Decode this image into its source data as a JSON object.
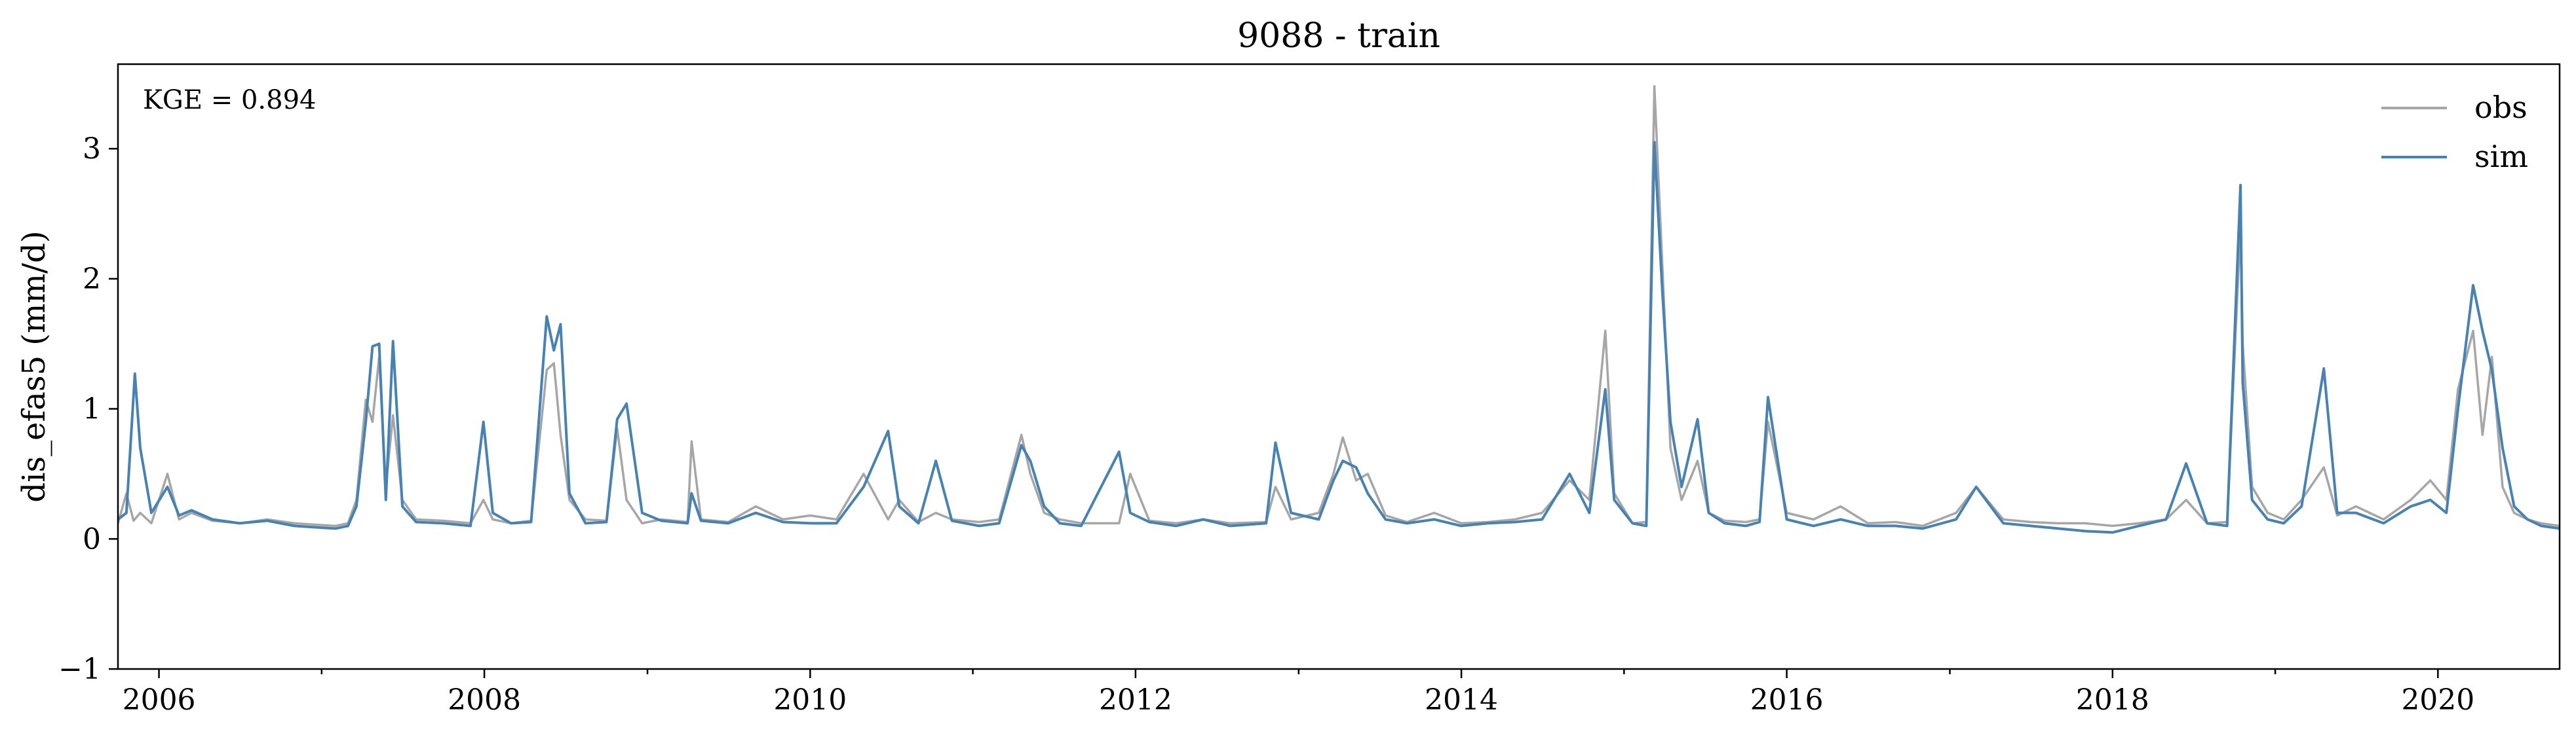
{
  "chart_data": {
    "type": "line",
    "title": "9088 - train",
    "xlabel": "",
    "ylabel": "dis_efas5 (mm/d)",
    "annotation": "KGE = 0.894",
    "xlim": [
      "2005-10-01",
      "2020-09-30"
    ],
    "ylim": [
      -1,
      3.65
    ],
    "x_ticks": [
      "2006",
      "2008",
      "2010",
      "2012",
      "2014",
      "2016",
      "2018",
      "2020"
    ],
    "y_ticks": [
      "−1",
      "0",
      "1",
      "2",
      "3"
    ],
    "grid": false,
    "legend_position": "top-right",
    "series": [
      {
        "name": "obs",
        "color": "#a6a6a6",
        "x": [
          "2005-10-01",
          "2005-10-20",
          "2005-11-05",
          "2005-11-20",
          "2005-12-15",
          "2006-01-20",
          "2006-02-15",
          "2006-03-15",
          "2006-05-01",
          "2006-07-01",
          "2006-09-01",
          "2006-11-01",
          "2006-12-15",
          "2007-02-01",
          "2007-03-01",
          "2007-03-20",
          "2007-04-10",
          "2007-04-25",
          "2007-05-10",
          "2007-05-25",
          "2007-06-10",
          "2007-07-01",
          "2007-08-01",
          "2007-10-01",
          "2007-12-01",
          "2007-12-30",
          "2008-01-20",
          "2008-03-01",
          "2008-04-15",
          "2008-05-20",
          "2008-06-05",
          "2008-06-20",
          "2008-07-10",
          "2008-08-15",
          "2008-10-01",
          "2008-10-25",
          "2008-11-15",
          "2008-12-20",
          "2009-02-01",
          "2009-04-01",
          "2009-04-10",
          "2009-05-01",
          "2009-07-01",
          "2009-09-01",
          "2009-11-01",
          "2010-01-01",
          "2010-03-01",
          "2010-05-01",
          "2010-06-25",
          "2010-07-20",
          "2010-09-01",
          "2010-10-10",
          "2010-11-15",
          "2011-01-15",
          "2011-03-01",
          "2011-04-20",
          "2011-05-10",
          "2011-06-10",
          "2011-07-15",
          "2011-09-01",
          "2011-11-25",
          "2011-12-20",
          "2012-02-01",
          "2012-04-01",
          "2012-06-01",
          "2012-08-01",
          "2012-10-20",
          "2012-11-10",
          "2012-12-15",
          "2013-02-15",
          "2013-03-20",
          "2013-04-10",
          "2013-05-10",
          "2013-06-05",
          "2013-07-15",
          "2013-09-01",
          "2013-11-01",
          "2014-01-01",
          "2014-03-01",
          "2014-05-01",
          "2014-07-01",
          "2014-09-01",
          "2014-10-15",
          "2014-11-20",
          "2014-12-10",
          "2015-01-20",
          "2015-02-20",
          "2015-03-10",
          "2015-03-28",
          "2015-04-15",
          "2015-05-10",
          "2015-06-15",
          "2015-07-10",
          "2015-08-15",
          "2015-10-01",
          "2015-11-01",
          "2015-11-20",
          "2016-01-01",
          "2016-03-01",
          "2016-05-01",
          "2016-07-01",
          "2016-09-01",
          "2016-11-01",
          "2017-01-15",
          "2017-03-01",
          "2017-05-01",
          "2017-07-01",
          "2017-09-01",
          "2017-11-01",
          "2018-01-01",
          "2018-03-01",
          "2018-05-01",
          "2018-06-15",
          "2018-08-01",
          "2018-09-15",
          "2018-10-15",
          "2018-10-20",
          "2018-11-10",
          "2018-12-15",
          "2019-01-20",
          "2019-03-01",
          "2019-04-20",
          "2019-05-20",
          "2019-07-01",
          "2019-09-01",
          "2019-11-01",
          "2019-12-15",
          "2020-01-20",
          "2020-02-15",
          "2020-03-20",
          "2020-04-10",
          "2020-05-01",
          "2020-05-25",
          "2020-06-20",
          "2020-07-20",
          "2020-08-20",
          "2020-09-30"
        ],
        "y": [
          0.12,
          0.35,
          0.14,
          0.2,
          0.12,
          0.5,
          0.15,
          0.2,
          0.14,
          0.12,
          0.15,
          0.12,
          0.11,
          0.1,
          0.12,
          0.3,
          1.07,
          0.9,
          1.4,
          0.4,
          0.95,
          0.3,
          0.15,
          0.14,
          0.12,
          0.3,
          0.15,
          0.12,
          0.14,
          1.3,
          1.35,
          0.8,
          0.3,
          0.15,
          0.14,
          0.85,
          0.3,
          0.12,
          0.15,
          0.13,
          0.75,
          0.15,
          0.13,
          0.25,
          0.15,
          0.18,
          0.15,
          0.5,
          0.15,
          0.3,
          0.13,
          0.2,
          0.15,
          0.13,
          0.15,
          0.8,
          0.5,
          0.2,
          0.15,
          0.12,
          0.12,
          0.5,
          0.14,
          0.12,
          0.15,
          0.12,
          0.13,
          0.4,
          0.15,
          0.2,
          0.5,
          0.78,
          0.45,
          0.5,
          0.18,
          0.13,
          0.2,
          0.12,
          0.13,
          0.15,
          0.2,
          0.45,
          0.3,
          1.6,
          0.35,
          0.12,
          0.13,
          3.48,
          2.1,
          0.7,
          0.3,
          0.6,
          0.2,
          0.14,
          0.13,
          0.15,
          0.9,
          0.2,
          0.15,
          0.25,
          0.12,
          0.13,
          0.1,
          0.2,
          0.4,
          0.15,
          0.13,
          0.12,
          0.12,
          0.1,
          0.12,
          0.15,
          0.3,
          0.12,
          0.13,
          2.4,
          1.5,
          0.4,
          0.2,
          0.15,
          0.3,
          0.55,
          0.18,
          0.25,
          0.15,
          0.3,
          0.45,
          0.3,
          1.15,
          1.6,
          0.8,
          1.4,
          0.4,
          0.2,
          0.15,
          0.12,
          0.1
        ]
      },
      {
        "name": "sim",
        "color": "#4682b4",
        "x": [
          "2005-10-01",
          "2005-10-20",
          "2005-11-08",
          "2005-11-20",
          "2005-12-15",
          "2006-01-20",
          "2006-02-15",
          "2006-03-15",
          "2006-05-01",
          "2006-07-01",
          "2006-09-01",
          "2006-11-01",
          "2006-12-15",
          "2007-02-01",
          "2007-03-01",
          "2007-03-20",
          "2007-04-10",
          "2007-04-25",
          "2007-05-10",
          "2007-05-25",
          "2007-06-10",
          "2007-07-01",
          "2007-08-01",
          "2007-10-01",
          "2007-12-01",
          "2007-12-30",
          "2008-01-20",
          "2008-03-01",
          "2008-04-15",
          "2008-05-20",
          "2008-06-05",
          "2008-06-20",
          "2008-07-10",
          "2008-08-15",
          "2008-10-01",
          "2008-10-25",
          "2008-11-15",
          "2008-12-20",
          "2009-02-01",
          "2009-04-01",
          "2009-04-10",
          "2009-05-01",
          "2009-07-01",
          "2009-09-01",
          "2009-11-01",
          "2010-01-01",
          "2010-03-01",
          "2010-05-01",
          "2010-06-25",
          "2010-07-20",
          "2010-09-01",
          "2010-10-10",
          "2010-11-15",
          "2011-01-15",
          "2011-03-01",
          "2011-04-20",
          "2011-05-10",
          "2011-06-10",
          "2011-07-15",
          "2011-09-01",
          "2011-11-25",
          "2011-12-20",
          "2012-02-01",
          "2012-04-01",
          "2012-06-01",
          "2012-08-01",
          "2012-10-20",
          "2012-11-10",
          "2012-12-15",
          "2013-02-15",
          "2013-03-20",
          "2013-04-10",
          "2013-05-10",
          "2013-06-05",
          "2013-07-15",
          "2013-09-01",
          "2013-11-01",
          "2014-01-01",
          "2014-03-01",
          "2014-05-01",
          "2014-07-01",
          "2014-09-01",
          "2014-10-15",
          "2014-11-20",
          "2014-12-10",
          "2015-01-20",
          "2015-02-20",
          "2015-03-10",
          "2015-03-28",
          "2015-04-15",
          "2015-05-10",
          "2015-06-15",
          "2015-07-10",
          "2015-08-15",
          "2015-10-01",
          "2015-11-01",
          "2015-11-20",
          "2016-01-01",
          "2016-03-01",
          "2016-05-01",
          "2016-07-01",
          "2016-09-01",
          "2016-11-01",
          "2017-01-15",
          "2017-03-01",
          "2017-05-01",
          "2017-07-01",
          "2017-09-01",
          "2017-11-01",
          "2018-01-01",
          "2018-03-01",
          "2018-05-01",
          "2018-06-15",
          "2018-08-01",
          "2018-09-15",
          "2018-10-15",
          "2018-10-20",
          "2018-11-10",
          "2018-12-15",
          "2019-01-20",
          "2019-03-01",
          "2019-04-20",
          "2019-05-20",
          "2019-07-01",
          "2019-09-01",
          "2019-11-01",
          "2019-12-15",
          "2020-01-20",
          "2020-02-15",
          "2020-03-20",
          "2020-04-10",
          "2020-05-01",
          "2020-05-25",
          "2020-06-20",
          "2020-07-20",
          "2020-08-20",
          "2020-09-30"
        ],
        "y": [
          0.15,
          0.2,
          1.27,
          0.7,
          0.2,
          0.4,
          0.18,
          0.22,
          0.15,
          0.12,
          0.14,
          0.1,
          0.09,
          0.08,
          0.1,
          0.25,
          0.9,
          1.48,
          1.5,
          0.3,
          1.52,
          0.25,
          0.13,
          0.12,
          0.1,
          0.9,
          0.2,
          0.12,
          0.13,
          1.71,
          1.45,
          1.65,
          0.35,
          0.12,
          0.13,
          0.92,
          1.04,
          0.2,
          0.14,
          0.12,
          0.35,
          0.14,
          0.12,
          0.2,
          0.13,
          0.12,
          0.12,
          0.4,
          0.83,
          0.25,
          0.12,
          0.6,
          0.14,
          0.1,
          0.12,
          0.72,
          0.6,
          0.25,
          0.12,
          0.1,
          0.67,
          0.2,
          0.13,
          0.1,
          0.15,
          0.1,
          0.12,
          0.74,
          0.2,
          0.15,
          0.45,
          0.6,
          0.55,
          0.35,
          0.15,
          0.12,
          0.15,
          0.1,
          0.12,
          0.13,
          0.15,
          0.5,
          0.2,
          1.15,
          0.3,
          0.12,
          0.1,
          3.05,
          1.9,
          0.9,
          0.4,
          0.92,
          0.2,
          0.12,
          0.1,
          0.13,
          1.09,
          0.15,
          0.1,
          0.15,
          0.1,
          0.1,
          0.08,
          0.15,
          0.4,
          0.12,
          0.1,
          0.08,
          0.06,
          0.05,
          0.1,
          0.15,
          0.58,
          0.12,
          0.1,
          2.72,
          1.2,
          0.3,
          0.15,
          0.12,
          0.25,
          1.31,
          0.2,
          0.2,
          0.12,
          0.25,
          0.3,
          0.2,
          1.0,
          1.95,
          1.6,
          1.3,
          0.7,
          0.25,
          0.15,
          0.1,
          0.08
        ]
      }
    ]
  }
}
